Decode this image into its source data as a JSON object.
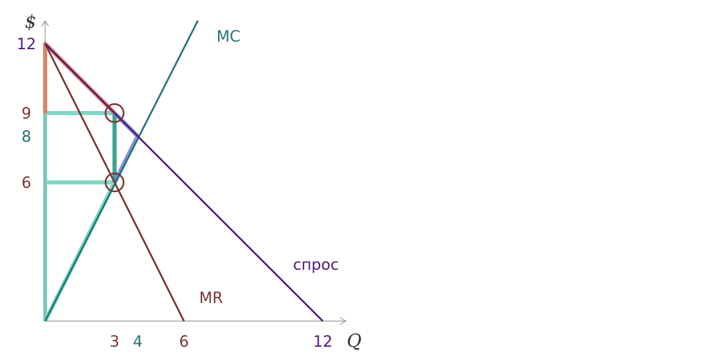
{
  "chart_data": {
    "type": "line",
    "xlabel": "Q",
    "ylabel": "$",
    "xlim": [
      0,
      13
    ],
    "ylim": [
      0,
      13
    ],
    "x_ticks": [
      "3",
      "4",
      "6",
      "12"
    ],
    "y_ticks": [
      "12",
      "9",
      "8",
      "6"
    ],
    "series": [
      {
        "name": "MC",
        "x": [
          0,
          6.6
        ],
        "y": [
          0,
          13
        ],
        "color": "#267373"
      },
      {
        "name": "MR",
        "x": [
          0,
          6
        ],
        "y": [
          12,
          0
        ],
        "color": "#7a3434"
      },
      {
        "name": "спрос",
        "x": [
          0,
          12
        ],
        "y": [
          12,
          0
        ],
        "color": "#4e1a80"
      }
    ],
    "highlights": {
      "orange_area_outline": [
        [
          0,
          9
        ],
        [
          0,
          12
        ],
        [
          3,
          9
        ]
      ],
      "teal_rect_top": 9,
      "teal_rect_mid": 6,
      "teal_quantity": 3,
      "blue_segment": [
        [
          3,
          9
        ],
        [
          4,
          8
        ],
        [
          3,
          6
        ]
      ],
      "circles": [
        [
          3,
          9
        ],
        [
          3,
          6
        ]
      ]
    },
    "colors": {
      "orange": "#e8744a",
      "teal_light": "#7fd8c6",
      "teal_dark": "#3aa590",
      "blue": "#6b7fd6",
      "mr": "#7a3434",
      "mc": "#267373",
      "demand": "#4e1a80",
      "axis": "#9a9a9a"
    }
  }
}
